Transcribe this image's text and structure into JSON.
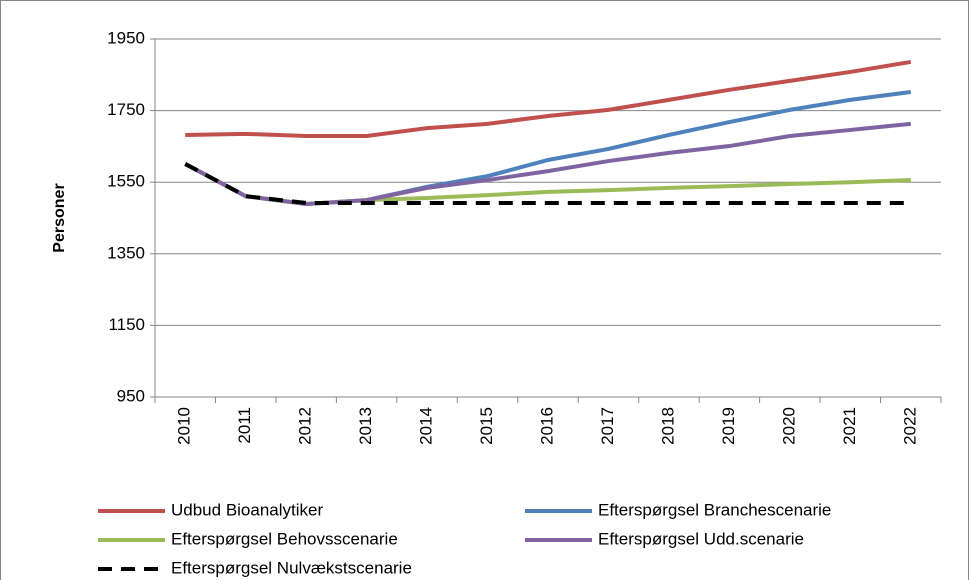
{
  "chart_data": {
    "type": "line",
    "y_label": "Personer",
    "categories": [
      "2010",
      "2011",
      "2012",
      "2013",
      "2014",
      "2015",
      "2016",
      "2017",
      "2018",
      "2019",
      "2020",
      "2021",
      "2022"
    ],
    "ylim": [
      950,
      1950
    ],
    "yticks": [
      950,
      1150,
      1350,
      1550,
      1750,
      1950
    ],
    "grid": true,
    "legend": "bottom",
    "series": [
      {
        "name": "Udbud Bioanalytiker",
        "color": "#c0504d",
        "dash": false,
        "values": [
          1682,
          1685,
          1679,
          1679,
          1701,
          1713,
          1735,
          1752,
          1780,
          1808,
          1833,
          1858,
          1886
        ]
      },
      {
        "name": "Efterspørgsel Branchescenarie",
        "color": "#4f81bd",
        "dash": false,
        "values": [
          1601,
          1511,
          1489,
          1500,
          1537,
          1567,
          1612,
          1643,
          1682,
          1718,
          1752,
          1780,
          1802
        ]
      },
      {
        "name": "Efterspørgsel Behovsscenarie",
        "color": "#9bbb59",
        "dash": false,
        "values": [
          1601,
          1511,
          1489,
          1500,
          1506,
          1514,
          1523,
          1528,
          1534,
          1539,
          1545,
          1550,
          1556
        ]
      },
      {
        "name": "Efterspørgsel Udd.scenarie",
        "color": "#8064a2",
        "dash": false,
        "values": [
          1601,
          1511,
          1489,
          1500,
          1534,
          1556,
          1581,
          1609,
          1632,
          1651,
          1679,
          1696,
          1713
        ]
      },
      {
        "name": "Efterspørgsel Nulvækstscenarie",
        "color": "#000000",
        "dash": true,
        "values": [
          1601,
          1511,
          1492,
          1492,
          1492,
          1492,
          1492,
          1492,
          1492,
          1492,
          1492,
          1492,
          1492
        ]
      }
    ]
  }
}
